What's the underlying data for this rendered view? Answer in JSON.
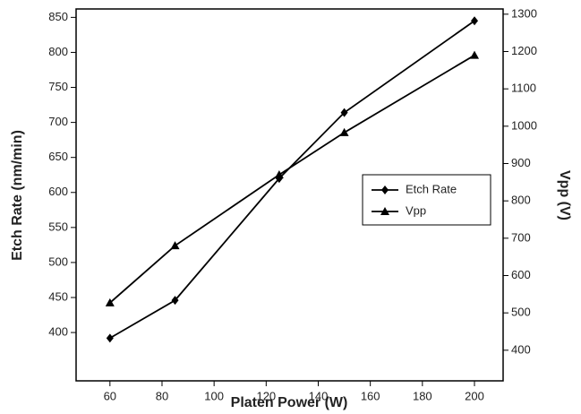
{
  "chart_data": {
    "type": "line",
    "xlabel": "Platen Power (W)",
    "ylabel": "Etch Rate (nm/min)",
    "y2label": "Vpp (V)",
    "x": [
      60,
      85,
      125,
      150,
      200
    ],
    "series": [
      {
        "name": "Etch Rate",
        "color": "#000000",
        "marker": "diamond",
        "values": [
          392,
          446,
          620,
          714,
          845
        ]
      },
      {
        "name": "Vpp",
        "color": "#000000",
        "marker": "triangle",
        "axis": "y2",
        "values": [
          527,
          680,
          870,
          983,
          1190
        ]
      }
    ],
    "xlim": [
      47,
      211
    ],
    "xticks": [
      60,
      80,
      100,
      120,
      140,
      160,
      180,
      200
    ],
    "ylim": [
      331,
      862
    ],
    "yticks": [
      400,
      450,
      500,
      550,
      600,
      650,
      700,
      750,
      800,
      850
    ],
    "y2lim": [
      318,
      1314
    ],
    "y2ticks": [
      400,
      500,
      600,
      700,
      800,
      900,
      1000,
      1100,
      1200,
      1300
    ],
    "grid": false,
    "legend": "right"
  }
}
